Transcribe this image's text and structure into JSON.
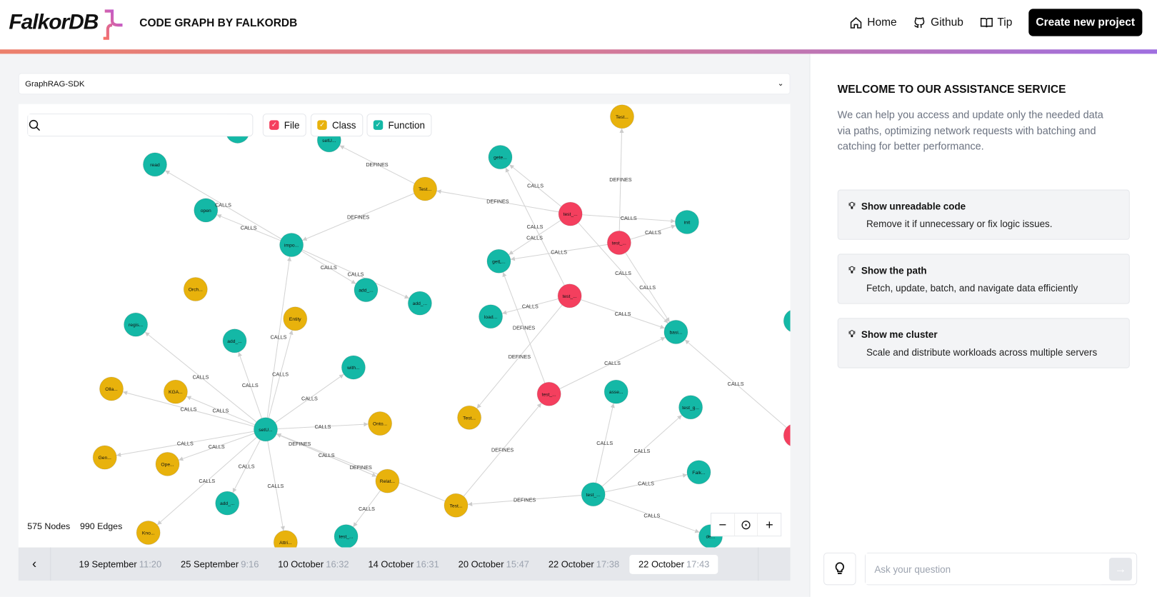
{
  "header": {
    "logo_text": "FalkorDB",
    "title": "CODE GRAPH BY FALKORDB",
    "nav": [
      {
        "label": "Home",
        "icon": "home-icon"
      },
      {
        "label": "Github",
        "icon": "github-icon"
      },
      {
        "label": "Tip",
        "icon": "book-icon"
      }
    ],
    "cta": "Create new project"
  },
  "project_select": {
    "value": "GraphRAG-SDK"
  },
  "search": {
    "placeholder": ""
  },
  "filters": [
    {
      "label": "File",
      "color": "#f43f5e"
    },
    {
      "label": "Class",
      "color": "#e8b20c"
    },
    {
      "label": "Function",
      "color": "#14b8a6"
    }
  ],
  "stats": {
    "nodes": "575 Nodes",
    "edges": "990 Edges"
  },
  "colors": {
    "File": "#f43f5e",
    "Class": "#e8b20c",
    "Function": "#14b8a6"
  },
  "graph": {
    "nodes": [
      {
        "label": "Test...",
        "type": "Class"
      },
      {
        "label": "read",
        "type": "Function"
      },
      {
        "label": "setU...",
        "type": "Function"
      },
      {
        "label": "",
        "type": "Function"
      },
      {
        "label": "gete...",
        "type": "Function"
      },
      {
        "label": "Test...",
        "type": "Class"
      },
      {
        "label": "open",
        "type": "Function"
      },
      {
        "label": "test_...",
        "type": "File"
      },
      {
        "label": "init",
        "type": "Function"
      },
      {
        "label": "test_...",
        "type": "File"
      },
      {
        "label": "impo...",
        "type": "Function"
      },
      {
        "label": "getL...",
        "type": "Function"
      },
      {
        "label": "add_...",
        "type": "Function"
      },
      {
        "label": "add_...",
        "type": "Function"
      },
      {
        "label": "Orch...",
        "type": "Class"
      },
      {
        "label": "test_...",
        "type": "File"
      },
      {
        "label": "load...",
        "type": "Function"
      },
      {
        "label": "Entity",
        "type": "Class"
      },
      {
        "label": "regis...",
        "type": "Function"
      },
      {
        "label": "add_...",
        "type": "Function"
      },
      {
        "label": "basi...",
        "type": "Function"
      },
      {
        "label": "with...",
        "type": "Function"
      },
      {
        "label": "Olla...",
        "type": "Class"
      },
      {
        "label": "KGA...",
        "type": "Class"
      },
      {
        "label": "test_...",
        "type": "File"
      },
      {
        "label": "asse...",
        "type": "Function"
      },
      {
        "label": "test_g...",
        "type": "Function"
      },
      {
        "label": "setU...",
        "type": "Function"
      },
      {
        "label": "Test...",
        "type": "Class"
      },
      {
        "label": "Onto...",
        "type": "Class"
      },
      {
        "label": "Gen...",
        "type": "Class"
      },
      {
        "label": "Ope...",
        "type": "Class"
      },
      {
        "label": "Falk...",
        "type": "Function"
      },
      {
        "label": "Relat...",
        "type": "Class"
      },
      {
        "label": "add_...",
        "type": "Function"
      },
      {
        "label": "test_...",
        "type": "Function"
      },
      {
        "label": "Test...",
        "type": "Class"
      },
      {
        "label": "Kno...",
        "type": "Class"
      },
      {
        "label": "Attri...",
        "type": "Class"
      },
      {
        "label": "test_...",
        "type": "Function"
      },
      {
        "label": "de...",
        "type": "Function"
      },
      {
        "label": "",
        "type": "File"
      },
      {
        "label": "",
        "type": "Function"
      }
    ],
    "edges": [
      {
        "from": 10,
        "to": 1,
        "label": "CALLS"
      },
      {
        "from": 10,
        "to": 6,
        "label": "CALLS"
      },
      {
        "from": 5,
        "to": 10,
        "label": "DEFINES"
      },
      {
        "from": 5,
        "to": 2,
        "label": "DEFINES"
      },
      {
        "from": 10,
        "to": 12,
        "label": "CALLS"
      },
      {
        "from": 10,
        "to": 13,
        "label": "CALLS"
      },
      {
        "from": 7,
        "to": 5,
        "label": "DEFINES"
      },
      {
        "from": 7,
        "to": 4,
        "label": "CALLS"
      },
      {
        "from": 7,
        "to": 8,
        "label": "CALLS"
      },
      {
        "from": 7,
        "to": 11,
        "label": "CALLS"
      },
      {
        "from": 7,
        "to": 20,
        "label": "CALLS"
      },
      {
        "from": 9,
        "to": 0,
        "label": "DEFINES"
      },
      {
        "from": 9,
        "to": 11,
        "label": "CALLS"
      },
      {
        "from": 9,
        "to": 8,
        "label": "CALLS"
      },
      {
        "from": 9,
        "to": 20,
        "label": "CALLS"
      },
      {
        "from": 15,
        "to": 16,
        "label": "CALLS"
      },
      {
        "from": 15,
        "to": 20,
        "label": "CALLS"
      },
      {
        "from": 15,
        "to": 4,
        "label": "CALLS"
      },
      {
        "from": 15,
        "to": 28,
        "label": "DEFINES"
      },
      {
        "from": 24,
        "to": 20,
        "label": "CALLS"
      },
      {
        "from": 24,
        "to": 11,
        "label": "DEFINES"
      },
      {
        "from": 27,
        "to": 10,
        "label": "CALLS"
      },
      {
        "from": 27,
        "to": 18,
        "label": "CALLS"
      },
      {
        "from": 27,
        "to": 19,
        "label": "CALLS"
      },
      {
        "from": 27,
        "to": 17,
        "label": "CALLS"
      },
      {
        "from": 27,
        "to": 21,
        "label": "CALLS"
      },
      {
        "from": 27,
        "to": 22,
        "label": "CALLS"
      },
      {
        "from": 27,
        "to": 23,
        "label": "CALLS"
      },
      {
        "from": 27,
        "to": 29,
        "label": "CALLS"
      },
      {
        "from": 27,
        "to": 30,
        "label": "CALLS"
      },
      {
        "from": 27,
        "to": 31,
        "label": "CALLS"
      },
      {
        "from": 27,
        "to": 33,
        "label": "CALLS"
      },
      {
        "from": 27,
        "to": 34,
        "label": "CALLS"
      },
      {
        "from": 27,
        "to": 37,
        "label": "CALLS"
      },
      {
        "from": 27,
        "to": 38,
        "label": "CALLS"
      },
      {
        "from": 36,
        "to": 27,
        "label": "DEFINES"
      },
      {
        "from": 36,
        "to": 24,
        "label": "DEFINES"
      },
      {
        "from": 35,
        "to": 36,
        "label": "DEFINES"
      },
      {
        "from": 35,
        "to": 25,
        "label": "CALLS"
      },
      {
        "from": 35,
        "to": 26,
        "label": "CALLS"
      },
      {
        "from": 35,
        "to": 32,
        "label": "CALLS"
      },
      {
        "from": 35,
        "to": 40,
        "label": "CALLS"
      },
      {
        "from": 41,
        "to": 20,
        "label": "CALLS"
      },
      {
        "from": 33,
        "to": 39,
        "label": "CALLS"
      },
      {
        "from": 33,
        "to": 27,
        "label": "DEFINES"
      }
    ]
  },
  "timeline": {
    "items": [
      {
        "date": "19 September",
        "time": "11:20"
      },
      {
        "date": "25 September",
        "time": "9:16"
      },
      {
        "date": "10 October",
        "time": "16:32"
      },
      {
        "date": "14 October",
        "time": "16:31"
      },
      {
        "date": "20 October",
        "time": "15:47"
      },
      {
        "date": "22 October",
        "time": "17:38"
      },
      {
        "date": "22 October",
        "time": "17:43",
        "selected": true
      }
    ]
  },
  "assistant": {
    "title": "WELCOME TO OUR ASSISTANCE SERVICE",
    "intro": "We can help you access and update only the needed data via paths, optimizing network requests with batching and catching for better performance.",
    "suggestions": [
      {
        "title": "Show unreadable code",
        "desc": "Remove it if unnecessary or fix logic issues."
      },
      {
        "title": "Show the path",
        "desc": "Fetch, update, batch, and navigate data efficiently"
      },
      {
        "title": "Show me cluster",
        "desc": "Scale and distribute workloads across multiple servers"
      }
    ],
    "input_placeholder": "Ask your question"
  }
}
